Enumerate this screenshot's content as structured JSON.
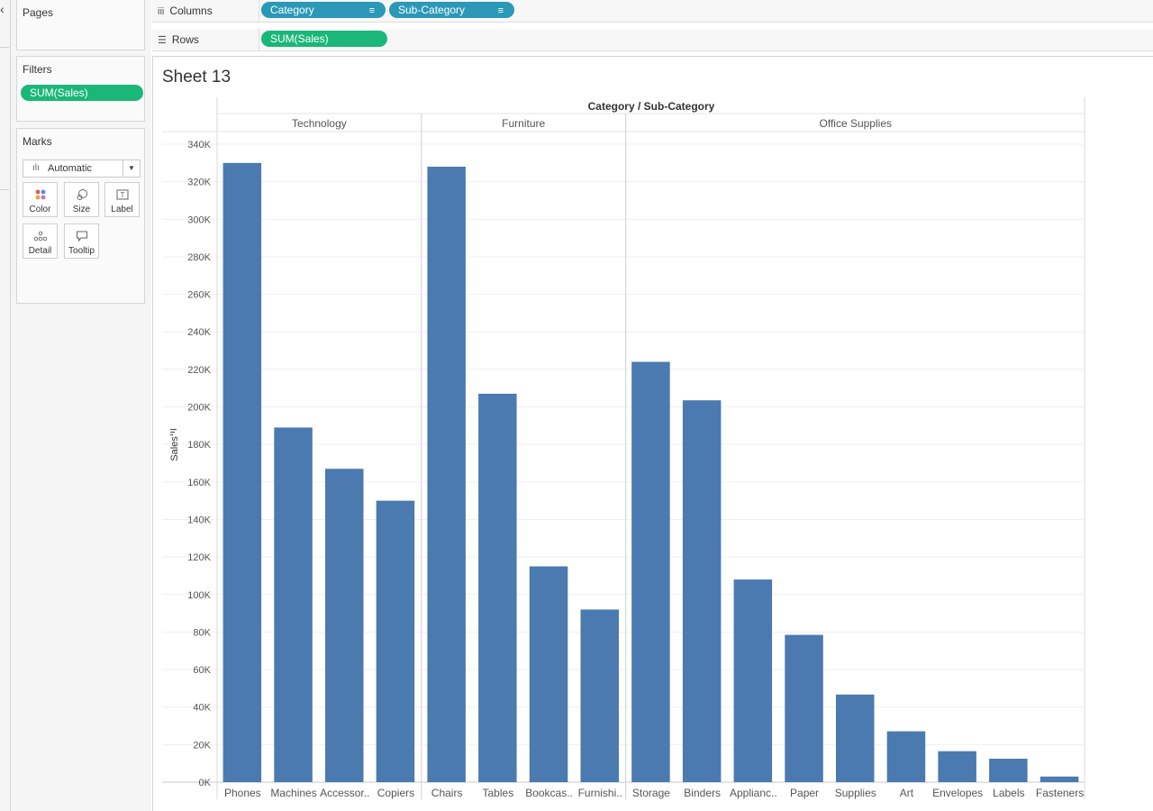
{
  "left_strip": {
    "collapse_glyph": "‹"
  },
  "pages": {
    "title": "Pages"
  },
  "filters": {
    "title": "Filters",
    "pills": [
      "SUM(Sales)"
    ]
  },
  "marks": {
    "title": "Marks",
    "type_icon": "bar-chart-icon",
    "type_value": "Automatic",
    "buttons": [
      {
        "id": "color",
        "label": "Color",
        "icon": "color-dots-icon"
      },
      {
        "id": "size",
        "label": "Size",
        "icon": "size-icon"
      },
      {
        "id": "label",
        "label": "Label",
        "icon": "text-label-icon"
      },
      {
        "id": "detail",
        "label": "Detail",
        "icon": "detail-dots-icon"
      },
      {
        "id": "tooltip",
        "label": "Tooltip",
        "icon": "tooltip-bubble-icon"
      }
    ]
  },
  "shelves": {
    "columns": {
      "label": "Columns",
      "icon": "columns-icon",
      "pills": [
        "Category",
        "Sub-Category"
      ]
    },
    "rows": {
      "label": "Rows",
      "icon": "rows-icon",
      "pills": [
        "SUM(Sales)"
      ]
    }
  },
  "sheet": {
    "title": "Sheet 13"
  },
  "colors": {
    "bar": "#4a7aaf",
    "measure_pill": "#1ab779",
    "dimension_pill": "#2b98b7"
  },
  "chart_data": {
    "type": "bar",
    "title": "",
    "header_title": "Category / Sub-Category",
    "ylabel": "Sales",
    "xlabel": "",
    "ylim": [
      0,
      340000
    ],
    "y_ticks": [
      "0K",
      "20K",
      "40K",
      "60K",
      "80K",
      "100K",
      "120K",
      "140K",
      "160K",
      "180K",
      "200K",
      "220K",
      "240K",
      "260K",
      "280K",
      "300K",
      "320K",
      "340K"
    ],
    "grid": true,
    "panes": [
      {
        "category": "Technology",
        "subcategories": [
          "Phones",
          "Machines",
          "Accessor..",
          "Copiers"
        ],
        "values": [
          330000,
          189000,
          167000,
          150000
        ]
      },
      {
        "category": "Furniture",
        "subcategories": [
          "Chairs",
          "Tables",
          "Bookcas..",
          "Furnishi.."
        ],
        "values": [
          328000,
          207000,
          115000,
          92000
        ]
      },
      {
        "category": "Office Supplies",
        "subcategories": [
          "Storage",
          "Binders",
          "Applianc..",
          "Paper",
          "Supplies",
          "Art",
          "Envelopes",
          "Labels",
          "Fasteners"
        ],
        "values": [
          224000,
          203500,
          108000,
          78500,
          46700,
          27100,
          16500,
          12500,
          3000
        ]
      }
    ]
  }
}
